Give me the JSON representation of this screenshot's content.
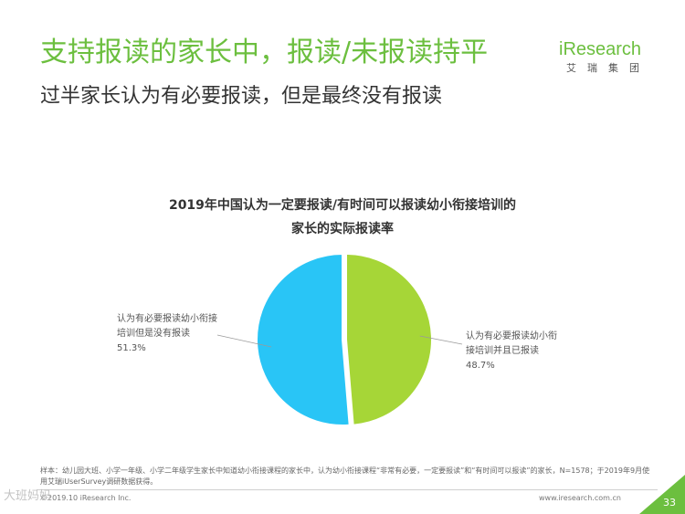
{
  "header": {
    "title": "支持报读的家长中，报读/未报读持平",
    "subtitle": "过半家长认为有必要报读，但是最终没有报读"
  },
  "logo": {
    "text": "iResearch",
    "sub": "艾瑞集团"
  },
  "chart_data": {
    "type": "pie",
    "title_line1": "2019年中国认为一定要报读/有时间可以报读幼小衔接培训的",
    "title_line2": "家长的实际报读率",
    "slices": [
      {
        "label_line1": "认为有必要报读幼小衔接",
        "label_line2": "培训但是没有报读",
        "value": 51.3,
        "value_text": "51.3%",
        "color": "#29c5f6"
      },
      {
        "label_line1": "认为有必要报读幼小衔",
        "label_line2": "接培训并且已报读",
        "value": 48.7,
        "value_text": "48.7%",
        "color": "#a6d637"
      }
    ]
  },
  "footnote": "样本：幼儿园大班、小学一年级、小学二年级学生家长中知道幼小衔接课程的家长中，认为幼小衔接课程“非常有必要，一定要报读”和“有时间可以报读”的家长，N=1578；于2019年9月使用艾瑞iUserSurvey调研数据获得。",
  "footer": {
    "copyright": "©2019.10 iResearch Inc.",
    "site": "www.iresearch.com.cn",
    "page": "33"
  },
  "watermark": "大班妈妈"
}
